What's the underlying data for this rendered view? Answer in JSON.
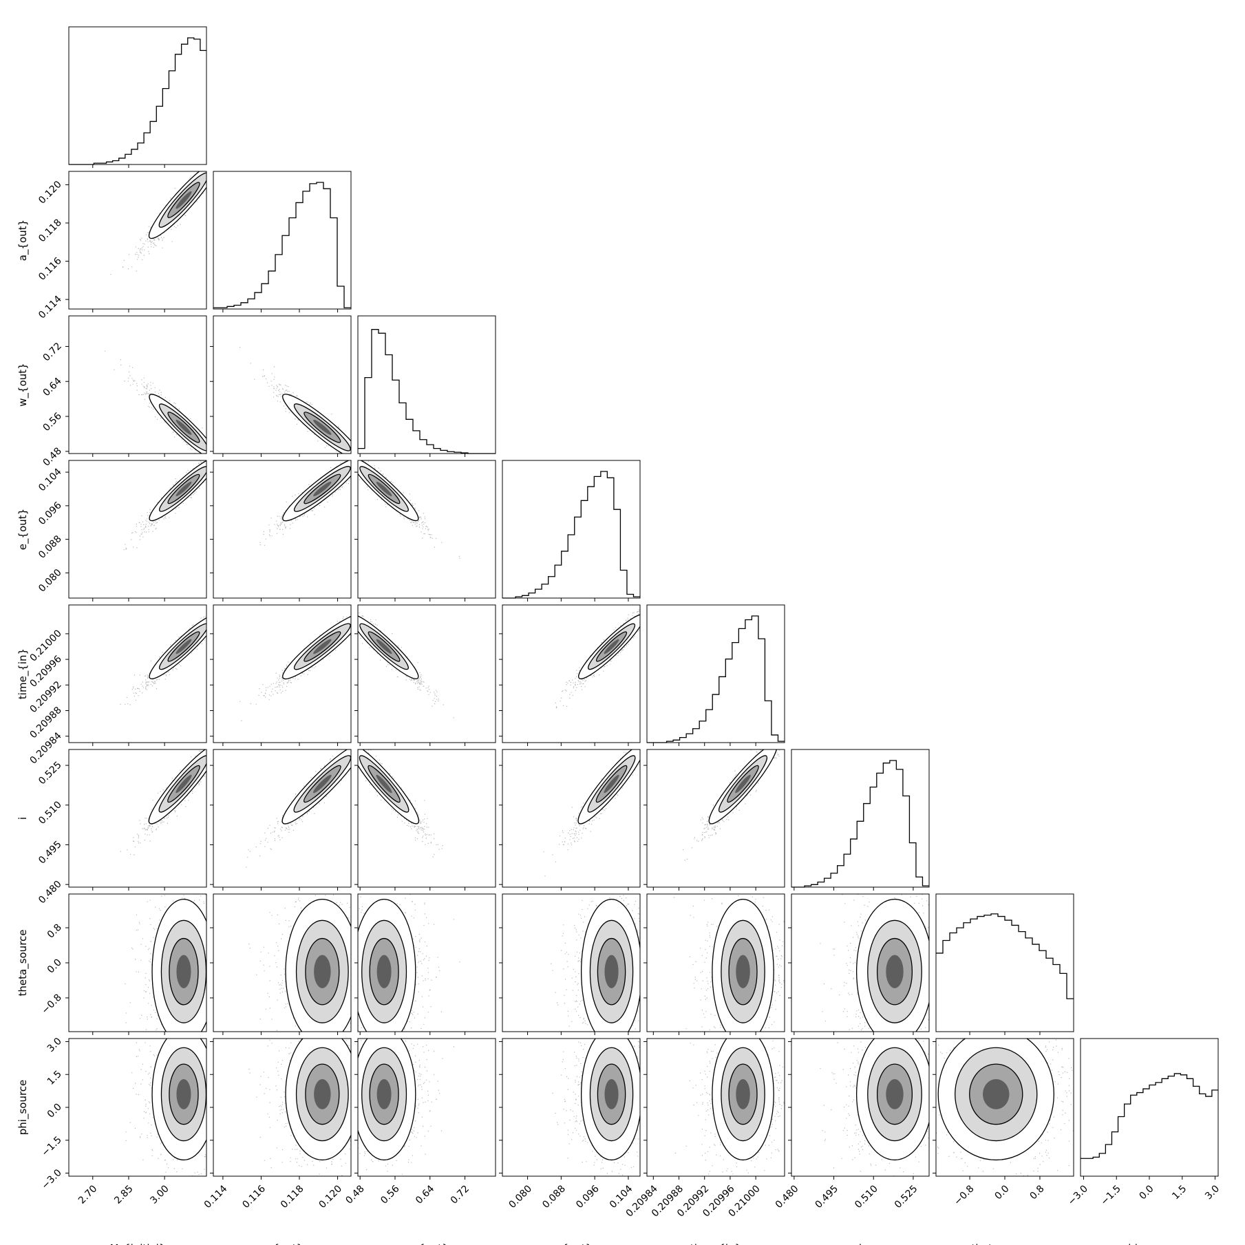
{
  "chart_data": {
    "type": "corner",
    "parameters": [
      {
        "name": "M_{initial}",
        "range": [
          2.6,
          3.175
        ],
        "ticks": [
          "2.70",
          "2.85",
          "3.00"
        ],
        "tick_values": [
          2.7,
          2.85,
          3.0
        ],
        "center": 3.08,
        "sigma": 0.055,
        "skew": -1
      },
      {
        "name": "a_{out}",
        "range": [
          0.1135,
          0.1207
        ],
        "ticks": [
          "0.114",
          "0.116",
          "0.118",
          "0.120"
        ],
        "tick_values": [
          0.114,
          0.116,
          0.118,
          0.12
        ],
        "center": 0.1192,
        "sigma": 0.0008,
        "skew": -1
      },
      {
        "name": "w_{out}",
        "range": [
          0.475,
          0.79
        ],
        "ticks": [
          "0.48",
          "0.56",
          "0.64",
          "0.72"
        ],
        "tick_values": [
          0.48,
          0.56,
          0.64,
          0.72
        ],
        "center": 0.535,
        "sigma": 0.03,
        "skew": 1
      },
      {
        "name": "e_{out}",
        "range": [
          0.074,
          0.1068
        ],
        "ticks": [
          "0.080",
          "0.088",
          "0.096",
          "0.104"
        ],
        "tick_values": [
          0.08,
          0.088,
          0.096,
          0.104
        ],
        "center": 0.1,
        "sigma": 0.003,
        "skew": -1
      },
      {
        "name": "time_{in}",
        "range": [
          0.20983,
          0.210045
        ],
        "ticks": [
          "0.20984",
          "0.20988",
          "0.20992",
          "0.20996",
          "0.21000"
        ],
        "tick_values": [
          0.20984,
          0.20988,
          0.20992,
          0.20996,
          0.21
        ],
        "center": 0.20998,
        "sigma": 2e-05,
        "skew": -1
      },
      {
        "name": "i",
        "range": [
          0.479,
          0.531
        ],
        "ticks": [
          "0.480",
          "0.495",
          "0.510",
          "0.525"
        ],
        "tick_values": [
          0.48,
          0.495,
          0.51,
          0.525
        ],
        "center": 0.518,
        "sigma": 0.006,
        "skew": -1
      },
      {
        "name": "theta_source",
        "range": [
          -1.57,
          1.57
        ],
        "ticks": [
          "−0.8",
          "0.0",
          "0.8"
        ],
        "tick_values": [
          -0.8,
          0.0,
          0.8
        ],
        "center": -0.2,
        "sigma": 0.55,
        "skew": 0
      },
      {
        "name": "phi_source",
        "range": [
          -3.14,
          3.14
        ],
        "ticks": [
          "−3.0",
          "−1.5",
          "0.0",
          "1.5",
          "3.0"
        ],
        "tick_values": [
          -3.0,
          -1.5,
          0.0,
          1.5,
          3.0
        ],
        "center": 0.6,
        "sigma": 1.0,
        "skew": 0
      }
    ],
    "histograms": [
      [
        0.0,
        0.0,
        0.0,
        0.0,
        0.01,
        0.01,
        0.02,
        0.03,
        0.05,
        0.08,
        0.12,
        0.17,
        0.25,
        0.34,
        0.46,
        0.6,
        0.74,
        0.87,
        0.95,
        1.0,
        0.99,
        0.9
      ],
      [
        0.01,
        0.01,
        0.02,
        0.03,
        0.05,
        0.08,
        0.13,
        0.2,
        0.3,
        0.43,
        0.58,
        0.72,
        0.84,
        0.93,
        0.99,
        1.0,
        0.95,
        0.72,
        0.18,
        0.01
      ],
      [
        0.04,
        0.6,
        0.98,
        0.95,
        0.78,
        0.58,
        0.4,
        0.27,
        0.18,
        0.11,
        0.07,
        0.04,
        0.025,
        0.015,
        0.01,
        0.005,
        0.0,
        0.0,
        0.0,
        0.0
      ],
      [
        0.0,
        0.0,
        0.01,
        0.02,
        0.04,
        0.07,
        0.11,
        0.17,
        0.26,
        0.37,
        0.5,
        0.64,
        0.77,
        0.88,
        0.96,
        1.0,
        0.95,
        0.7,
        0.22,
        0.03,
        0.01
      ],
      [
        0.0,
        0.0,
        0.0,
        0.01,
        0.02,
        0.04,
        0.07,
        0.11,
        0.17,
        0.26,
        0.38,
        0.52,
        0.66,
        0.79,
        0.9,
        0.97,
        1.0,
        0.82,
        0.33,
        0.06,
        0.01
      ],
      [
        0.0,
        0.0,
        0.01,
        0.02,
        0.04,
        0.07,
        0.11,
        0.17,
        0.26,
        0.38,
        0.52,
        0.66,
        0.79,
        0.9,
        0.98,
        1.0,
        0.93,
        0.72,
        0.35,
        0.08,
        0.01
      ],
      [
        0.62,
        0.72,
        0.78,
        0.82,
        0.86,
        0.89,
        0.91,
        0.92,
        0.93,
        0.91,
        0.88,
        0.84,
        0.79,
        0.74,
        0.69,
        0.64,
        0.58,
        0.53,
        0.46,
        0.26
      ],
      [
        0.14,
        0.14,
        0.15,
        0.18,
        0.25,
        0.35,
        0.47,
        0.57,
        0.64,
        0.66,
        0.69,
        0.72,
        0.74,
        0.77,
        0.79,
        0.81,
        0.8,
        0.77,
        0.71,
        0.65,
        0.63,
        0.68
      ]
    ]
  }
}
